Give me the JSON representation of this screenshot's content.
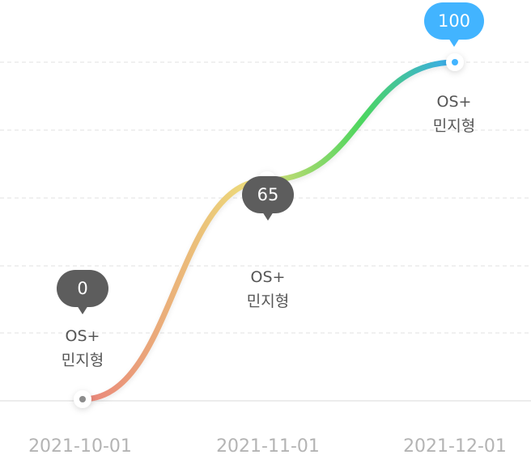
{
  "chart_data": {
    "type": "line",
    "x": [
      "2021-10-01",
      "2021-11-01",
      "2021-12-01"
    ],
    "series": [
      {
        "values": [
          0,
          65,
          100
        ],
        "labels": [
          [
            "OS+",
            "민지형"
          ],
          [
            "OS+",
            "민지형"
          ],
          [
            "OS+",
            "민지형"
          ]
        ]
      }
    ],
    "ylim": [
      0,
      100
    ],
    "grid": "horizontal-dashed",
    "gradient_colors": [
      "#e9837a",
      "#ecdc7a",
      "#4cd65f",
      "#38a8f4"
    ],
    "bubble_colors": [
      "#5d5d5d",
      "#5d5d5d",
      "#42b4ff"
    ]
  }
}
